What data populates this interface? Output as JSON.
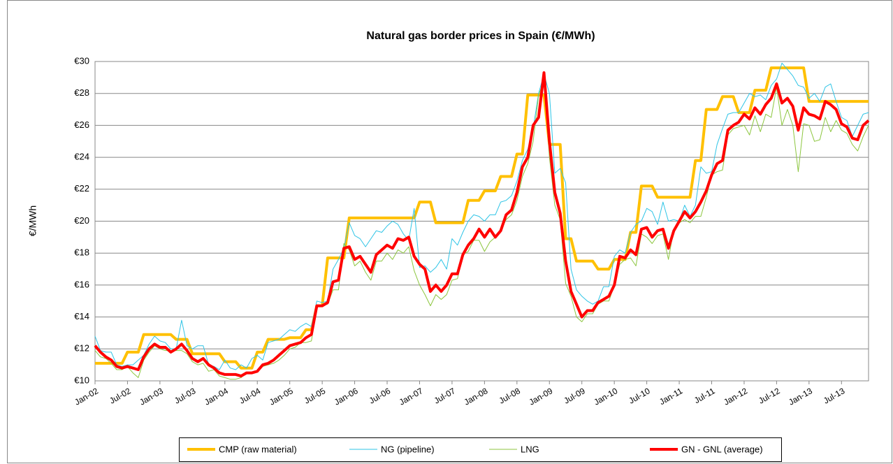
{
  "chart_data": {
    "type": "line",
    "title": "Natural gas border prices in Spain (€/MWh)",
    "y_label": "€/MWh",
    "categories": [
      "Jan-02",
      null,
      null,
      null,
      null,
      null,
      "Jul-02",
      null,
      null,
      null,
      null,
      null,
      "Jan-03",
      null,
      null,
      null,
      null,
      null,
      "Jul-03",
      null,
      null,
      null,
      null,
      null,
      "Jan-04",
      null,
      null,
      null,
      null,
      null,
      "Jul-04",
      null,
      null,
      null,
      null,
      null,
      "Jan-05",
      null,
      null,
      null,
      null,
      null,
      "Jul-05",
      null,
      null,
      null,
      null,
      null,
      "Jan-06",
      null,
      null,
      null,
      null,
      null,
      "Jul-06",
      null,
      null,
      null,
      null,
      null,
      "Jan-07",
      null,
      null,
      null,
      null,
      null,
      "Jul-07",
      null,
      null,
      null,
      null,
      null,
      "Jan-08",
      null,
      null,
      null,
      null,
      null,
      "Jul-08",
      null,
      null,
      null,
      null,
      null,
      "Jan-09",
      null,
      null,
      null,
      null,
      null,
      "Jul-09",
      null,
      null,
      null,
      null,
      null,
      "Jan-10",
      null,
      null,
      null,
      null,
      null,
      "Jul-10",
      null,
      null,
      null,
      null,
      null,
      "Jan-11",
      null,
      null,
      null,
      null,
      null,
      "Jul-11",
      null,
      null,
      null,
      null,
      null,
      "Jan-12",
      null,
      null,
      null,
      null,
      null,
      "Jul-12",
      null,
      null,
      null,
      null,
      null,
      "Jan-13",
      null,
      null,
      null,
      null,
      null,
      "Jul-13",
      null,
      null,
      null,
      null,
      null
    ],
    "ylim": [
      10,
      30
    ],
    "yticks": [
      {
        "value": 10,
        "label": "€10"
      },
      {
        "value": 12,
        "label": "€12"
      },
      {
        "value": 14,
        "label": "€14"
      },
      {
        "value": 16,
        "label": "€16"
      },
      {
        "value": 18,
        "label": "€18"
      },
      {
        "value": 20,
        "label": "€20"
      },
      {
        "value": 22,
        "label": "€22"
      },
      {
        "value": 24,
        "label": "€24"
      },
      {
        "value": 26,
        "label": "€26"
      },
      {
        "value": 28,
        "label": "€28"
      },
      {
        "value": 30,
        "label": "€30"
      }
    ],
    "grid": true,
    "legend": "bottom",
    "series": [
      {
        "name": "CMP (raw material)",
        "color": "#ffc000",
        "width": 4,
        "values": [
          11.1,
          11.1,
          11.1,
          11.1,
          11.1,
          11.1,
          11.8,
          11.8,
          11.8,
          12.9,
          12.9,
          12.9,
          12.9,
          12.9,
          12.9,
          12.6,
          12.6,
          12.6,
          11.7,
          11.7,
          11.7,
          11.7,
          11.7,
          11.7,
          11.2,
          11.2,
          11.2,
          10.8,
          10.8,
          10.8,
          11.8,
          11.8,
          12.6,
          12.6,
          12.6,
          12.6,
          12.7,
          12.7,
          12.7,
          13.2,
          13.2,
          14.7,
          14.7,
          17.7,
          17.7,
          17.7,
          17.7,
          20.2,
          20.2,
          20.2,
          20.2,
          20.2,
          20.2,
          20.2,
          20.2,
          20.2,
          20.2,
          20.2,
          20.2,
          20.2,
          21.2,
          21.2,
          21.2,
          19.9,
          19.9,
          19.9,
          19.9,
          19.9,
          19.9,
          21.3,
          21.3,
          21.3,
          21.9,
          21.9,
          21.9,
          22.8,
          22.8,
          22.8,
          24.2,
          24.2,
          27.9,
          27.9,
          27.9,
          27.9,
          24.8,
          24.8,
          24.8,
          18.9,
          18.9,
          17.5,
          17.5,
          17.5,
          17.5,
          17.0,
          17.0,
          17.0,
          17.6,
          17.6,
          17.6,
          19.3,
          19.3,
          22.2,
          22.2,
          22.2,
          21.5,
          21.5,
          21.5,
          21.5,
          21.5,
          21.5,
          21.5,
          23.8,
          23.8,
          27.0,
          27.0,
          27.0,
          27.8,
          27.8,
          27.8,
          26.8,
          26.8,
          26.8,
          28.2,
          28.2,
          28.2,
          29.6,
          29.6,
          29.6,
          29.6,
          29.6,
          29.6,
          29.6,
          27.5,
          27.5,
          27.5,
          27.5,
          27.5,
          27.5,
          27.5,
          27.5,
          27.5,
          27.5,
          27.5,
          27.5
        ]
      },
      {
        "name": "NG (pipeline)",
        "color": "#2ec4e6",
        "width": 1,
        "values": [
          12.8,
          11.9,
          11.8,
          11.8,
          11.0,
          10.9,
          11.0,
          11.0,
          11.3,
          11.6,
          12.3,
          12.8,
          12.5,
          12.4,
          12.0,
          12.0,
          13.8,
          12.2,
          12.0,
          12.2,
          12.2,
          11.0,
          10.9,
          10.7,
          11.3,
          10.8,
          10.7,
          11.0,
          10.8,
          11.4,
          11.6,
          11.3,
          12.4,
          12.5,
          12.6,
          12.9,
          13.2,
          13.1,
          13.4,
          13.6,
          13.4,
          15.0,
          14.9,
          15.0,
          17.0,
          17.6,
          18.3,
          19.9,
          19.1,
          18.9,
          18.4,
          18.9,
          19.4,
          19.3,
          19.7,
          20.0,
          19.8,
          19.2,
          18.8,
          20.8,
          17.1,
          17.2,
          16.8,
          17.1,
          17.6,
          17.0,
          18.9,
          18.5,
          19.3,
          20.0,
          20.4,
          20.3,
          20.0,
          20.4,
          20.4,
          21.2,
          21.3,
          21.6,
          22.5,
          23.8,
          24.5,
          25.8,
          28.0,
          29.2,
          28.0,
          23.0,
          23.3,
          22.4,
          17.0,
          15.7,
          15.3,
          15.0,
          14.8,
          15.0,
          15.9,
          15.9,
          17.8,
          18.2,
          18.0,
          19.3,
          19.8,
          20.0,
          20.8,
          20.6,
          19.8,
          21.2,
          20.0,
          20.1,
          20.0,
          21.0,
          20.3,
          21.0,
          23.4,
          23.0,
          23.1,
          24.8,
          25.8,
          26.7,
          26.8,
          26.8,
          27.4,
          28.0,
          27.8,
          27.9,
          27.6,
          28.5,
          28.9,
          29.9,
          29.5,
          29.1,
          28.5,
          28.4,
          27.7,
          28.0,
          27.5,
          28.4,
          28.6,
          27.5,
          26.5,
          26.3,
          25.3,
          26.0,
          26.7,
          26.8
        ]
      },
      {
        "name": "LNG",
        "color": "#8cc63f",
        "width": 1,
        "values": [
          11.9,
          11.5,
          11.4,
          11.1,
          10.7,
          10.7,
          10.9,
          10.5,
          10.2,
          11.3,
          11.8,
          12.2,
          12.0,
          11.9,
          11.9,
          11.9,
          11.9,
          11.7,
          11.2,
          11.0,
          11.1,
          10.6,
          10.7,
          10.3,
          10.2,
          10.1,
          10.1,
          10.2,
          10.5,
          10.5,
          10.6,
          10.9,
          11.0,
          11.1,
          11.3,
          11.6,
          12.0,
          12.1,
          12.4,
          12.4,
          12.5,
          14.7,
          14.7,
          14.8,
          15.7,
          15.7,
          18.6,
          18.2,
          17.2,
          17.5,
          16.8,
          16.3,
          17.5,
          17.5,
          18.0,
          17.6,
          18.2,
          18.0,
          18.4,
          16.9,
          16.0,
          15.4,
          14.7,
          15.4,
          15.1,
          15.4,
          16.3,
          16.4,
          17.9,
          18.1,
          18.8,
          18.8,
          18.1,
          18.7,
          19.0,
          19.4,
          20.1,
          20.4,
          21.3,
          22.8,
          23.6,
          25.0,
          27.9,
          28.8,
          24.0,
          21.0,
          20.1,
          16.1,
          15.3,
          14.0,
          13.7,
          14.2,
          14.2,
          14.8,
          15.0,
          15.0,
          16.0,
          17.3,
          17.6,
          17.7,
          17.2,
          19.2,
          19.0,
          18.6,
          19.1,
          19.2,
          17.6,
          19.5,
          19.9,
          20.1,
          19.9,
          20.3,
          20.3,
          21.5,
          22.9,
          23.1,
          23.2,
          25.4,
          25.8,
          25.9,
          26.0,
          25.4,
          26.6,
          25.6,
          26.7,
          26.5,
          28.4,
          26.0,
          27.0,
          26.0,
          23.1,
          26.1,
          26.0,
          25.0,
          25.1,
          26.5,
          25.6,
          26.3,
          25.7,
          25.5,
          24.8,
          24.4,
          25.3,
          26.0
        ]
      },
      {
        "name": "GN - GNL (average)",
        "color": "#ff0000",
        "width": 4,
        "values": [
          12.2,
          11.8,
          11.5,
          11.3,
          10.9,
          10.8,
          10.9,
          10.8,
          10.7,
          11.5,
          12.0,
          12.3,
          12.1,
          12.1,
          11.8,
          12.0,
          12.3,
          11.9,
          11.4,
          11.2,
          11.4,
          11.0,
          10.8,
          10.5,
          10.4,
          10.4,
          10.4,
          10.3,
          10.5,
          10.5,
          10.6,
          11.0,
          11.1,
          11.3,
          11.6,
          11.9,
          12.2,
          12.3,
          12.4,
          12.7,
          12.9,
          14.7,
          14.7,
          14.9,
          16.2,
          16.3,
          18.3,
          18.4,
          17.6,
          17.8,
          17.3,
          16.8,
          17.9,
          18.2,
          18.5,
          18.3,
          18.9,
          18.8,
          19.0,
          17.8,
          17.3,
          17.0,
          15.6,
          16.0,
          15.6,
          16.0,
          16.7,
          16.7,
          17.9,
          18.5,
          18.9,
          19.5,
          19.0,
          19.5,
          19.0,
          19.4,
          20.4,
          20.7,
          21.8,
          23.4,
          24.0,
          26.0,
          26.5,
          29.3,
          25.0,
          21.8,
          20.5,
          17.5,
          15.6,
          14.8,
          14.0,
          14.4,
          14.4,
          14.9,
          15.1,
          15.3,
          16.0,
          17.8,
          17.7,
          18.2,
          17.9,
          19.5,
          19.6,
          19.0,
          19.4,
          19.5,
          18.3,
          19.4,
          20.0,
          20.6,
          20.2,
          20.6,
          21.2,
          21.9,
          22.9,
          23.6,
          23.8,
          25.7,
          26.0,
          26.2,
          26.7,
          26.4,
          27.1,
          26.7,
          27.3,
          27.7,
          28.6,
          27.4,
          27.7,
          27.2,
          25.7,
          27.1,
          26.7,
          26.6,
          26.4,
          27.5,
          27.3,
          27.0,
          26.1,
          25.9,
          25.2,
          25.1,
          26.0,
          26.3
        ]
      }
    ]
  }
}
